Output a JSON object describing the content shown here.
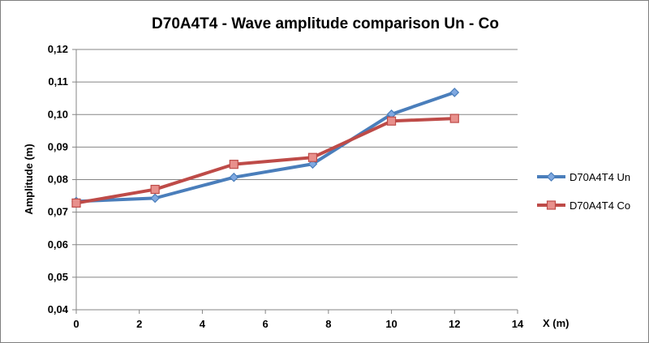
{
  "chart_data": {
    "type": "line",
    "title": "D70A4T4 - Wave amplitude comparison Un - Co",
    "xlabel": "X (m)",
    "ylabel": "Amplitude (m)",
    "xlim": [
      0,
      14
    ],
    "ylim": [
      0.04,
      0.12
    ],
    "xticks": [
      0,
      2,
      4,
      6,
      8,
      10,
      12,
      14
    ],
    "yticks": [
      0.04,
      0.05,
      0.06,
      0.07,
      0.08,
      0.09,
      0.1,
      0.11,
      0.12
    ],
    "xtick_labels": [
      "0",
      "2",
      "4",
      "6",
      "8",
      "10",
      "12",
      "14"
    ],
    "ytick_labels": [
      "0,04",
      "0,05",
      "0,06",
      "0,07",
      "0,08",
      "0,09",
      "0,10",
      "0,11",
      "0,12"
    ],
    "grid": "horizontal",
    "legend_position": "right",
    "series": [
      {
        "name": "D70A4T4 Un",
        "color": "#4a7ebb",
        "marker": "diamond",
        "x": [
          0,
          2.5,
          5,
          7.5,
          10,
          12
        ],
        "y": [
          0.0733,
          0.0743,
          0.0807,
          0.0848,
          0.1001,
          0.1068
        ]
      },
      {
        "name": "D70A4T4 Co",
        "color": "#be4b48",
        "marker": "square",
        "x": [
          0,
          2.5,
          5,
          7.5,
          10,
          12
        ],
        "y": [
          0.0728,
          0.077,
          0.0847,
          0.0868,
          0.098,
          0.0988
        ]
      }
    ]
  }
}
